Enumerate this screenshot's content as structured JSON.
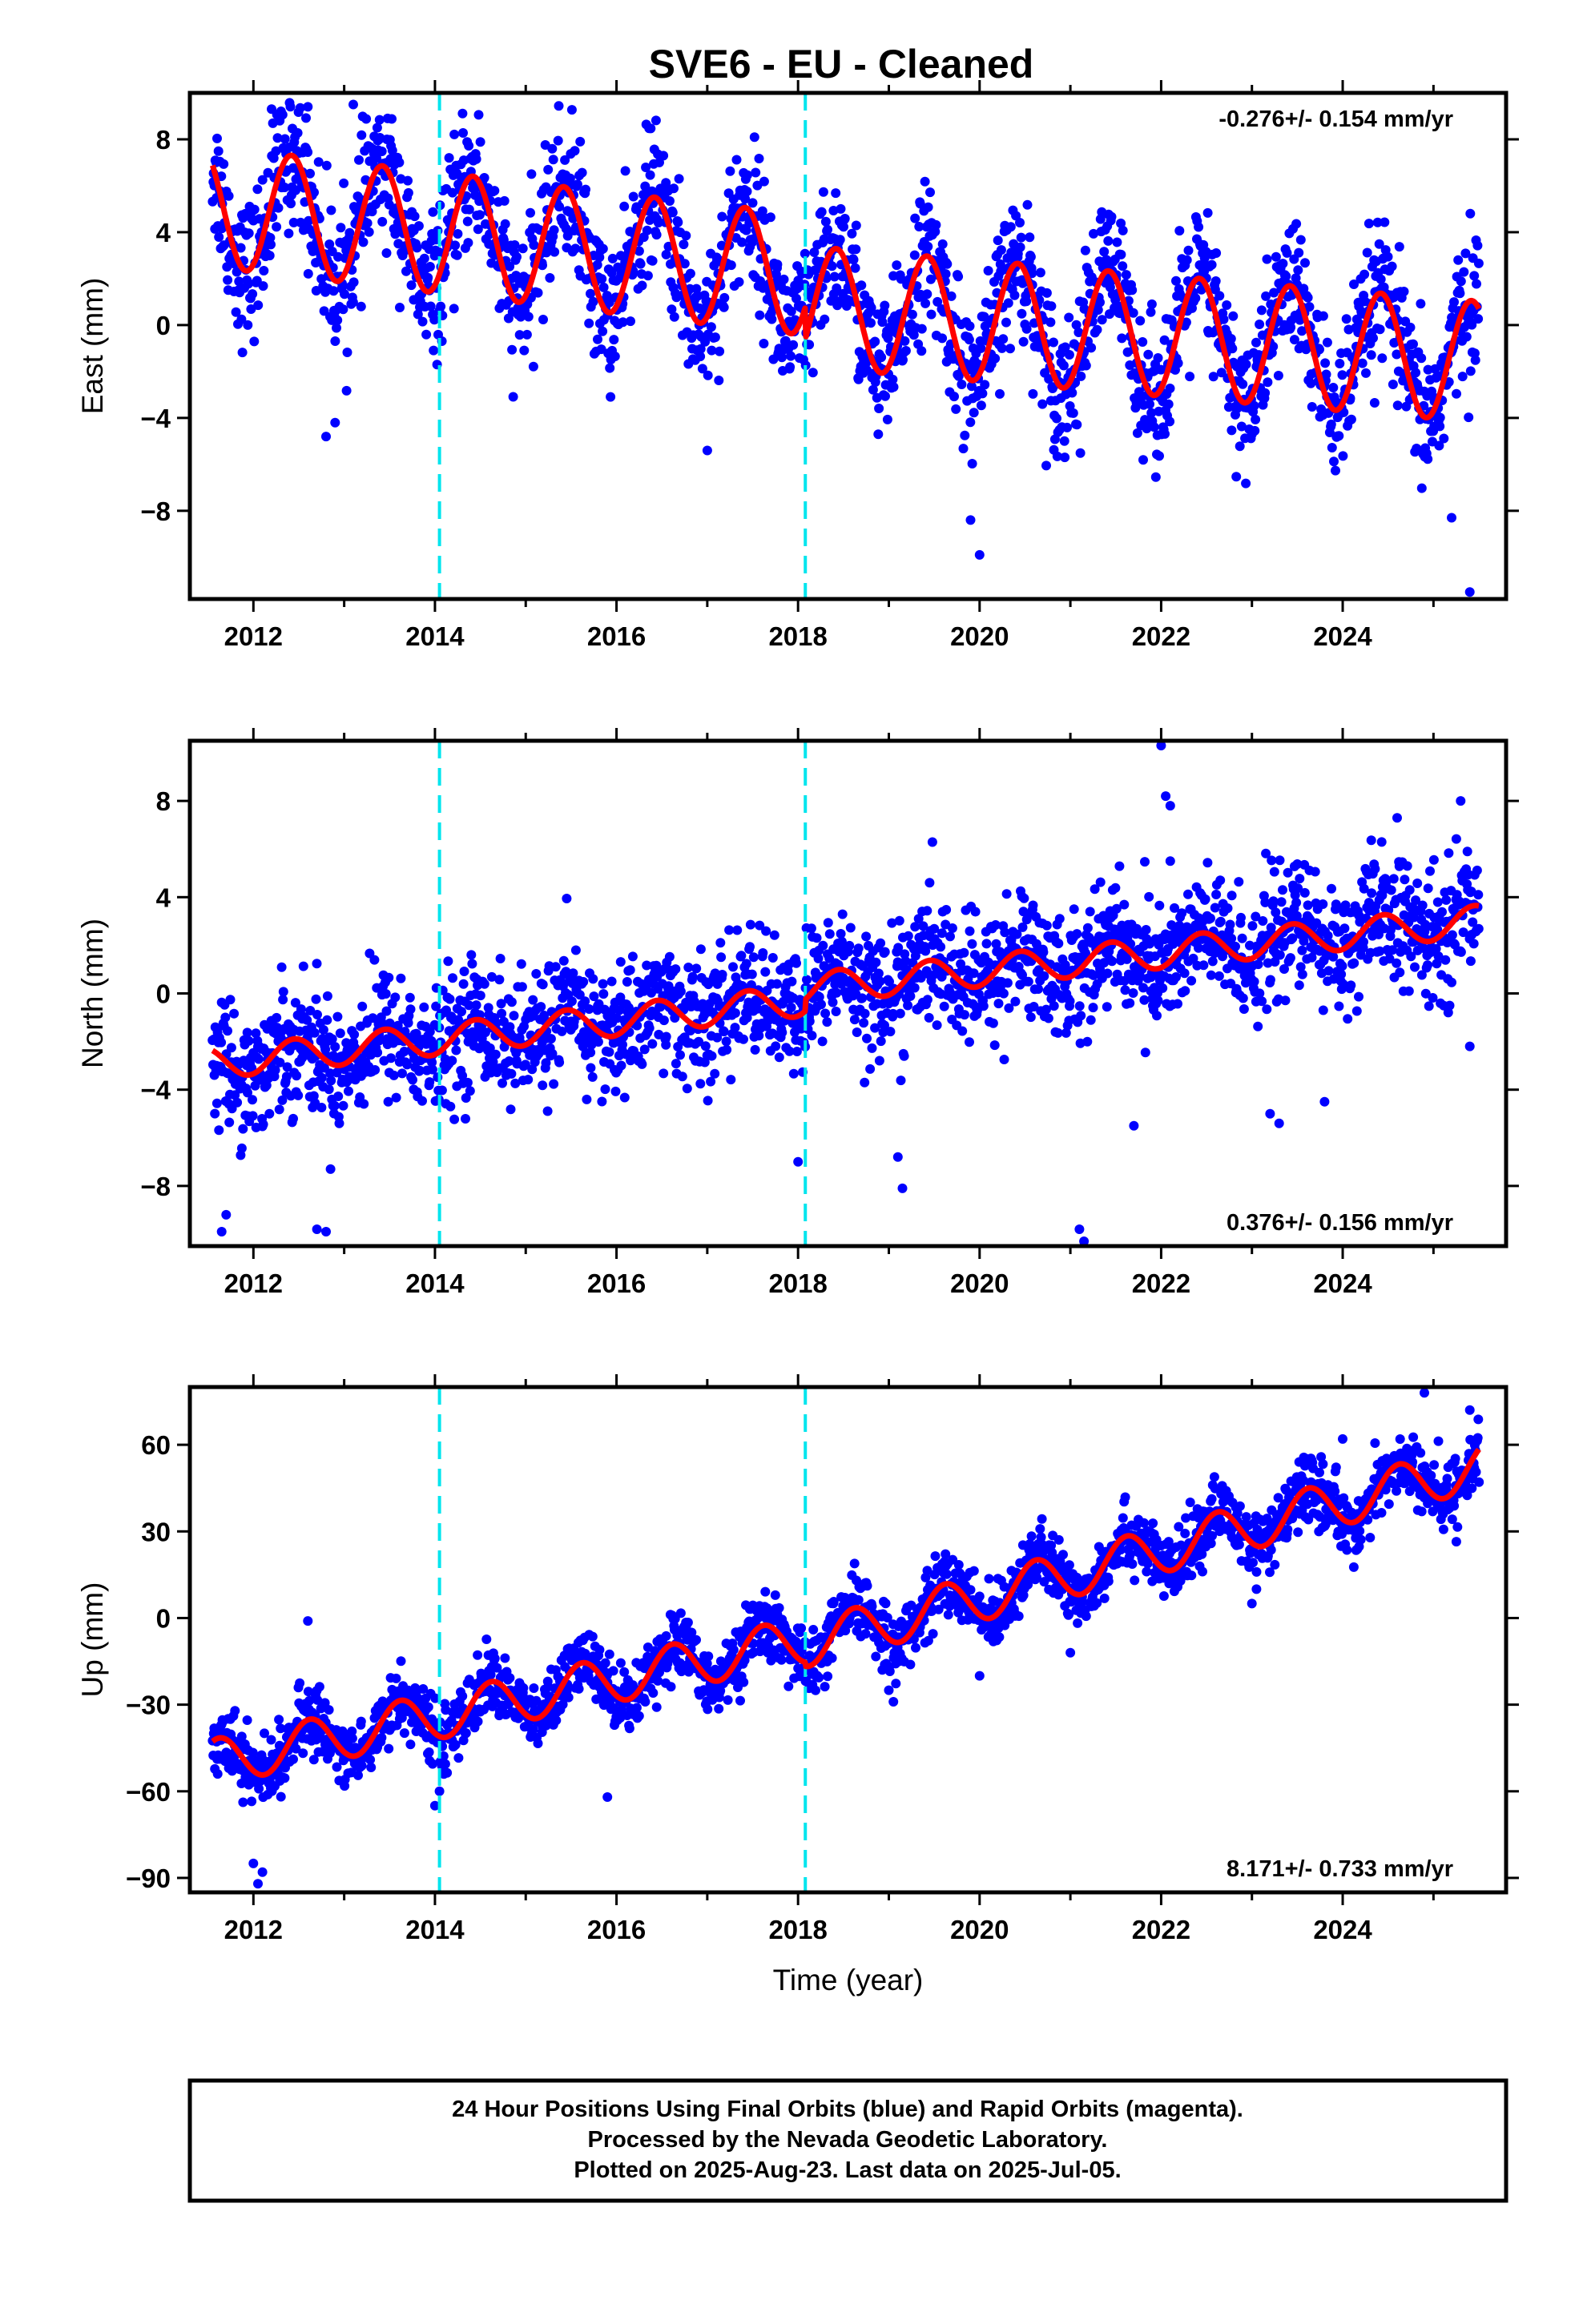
{
  "title": "SVE6  - EU - Cleaned",
  "footer": {
    "lines": [
      "24 Hour Positions Using Final Orbits (blue) and Rapid Orbits (magenta).",
      "Processed by the Nevada Geodetic Laboratory.",
      "Plotted on 2025-Aug-23. Last data on 2025-Jul-05."
    ]
  },
  "colors": {
    "points": "#0000ff",
    "model": "#ff0000",
    "breaks": "#00e5ee",
    "frame": "#000000"
  },
  "chart_data": [
    {
      "type": "scatter",
      "ylabel": "East (mm)",
      "xlabel": "",
      "xlim": [
        2011.3,
        2025.8
      ],
      "ylim": [
        -11.8,
        10.0
      ],
      "xticks": [
        2012,
        2014,
        2016,
        2018,
        2020,
        2022,
        2024
      ],
      "yticks": [
        8,
        4,
        0,
        -4,
        -8
      ],
      "rate_text": "-0.276+/- 0.154 mm/yr",
      "rate_position": "top-right",
      "model": {
        "start_year": 2011.55,
        "end_year": 2025.5,
        "segments": [
          {
            "x0": 2011.55,
            "x1": 2018.08,
            "offset": 5.1,
            "trend": -0.45,
            "amplitude": 2.6,
            "peak_phase": 0.42
          },
          {
            "x0": 2018.08,
            "x1": 2025.5,
            "offset": 0.8,
            "trend": -0.32,
            "amplitude": 2.6,
            "peak_phase": 0.42
          }
        ],
        "scatter_sigma": 1.5
      },
      "outliers": [
        [
          2012.2,
          9.3
        ],
        [
          2013.1,
          9.5
        ],
        [
          2012.6,
          9.4
        ],
        [
          2012.8,
          -4.8
        ],
        [
          2015.6,
          7.9
        ],
        [
          2020.0,
          -9.9
        ],
        [
          2019.9,
          -8.4
        ],
        [
          2025.2,
          -8.3
        ],
        [
          2025.4,
          -11.5
        ],
        [
          2012.9,
          -4.2
        ],
        [
          2017.0,
          -5.4
        ]
      ],
      "breaks": [
        2014.05,
        2018.08
      ]
    },
    {
      "type": "scatter",
      "ylabel": "North (mm)",
      "xlabel": "",
      "xlim": [
        2011.3,
        2025.8
      ],
      "ylim": [
        -10.5,
        10.5
      ],
      "xticks": [
        2012,
        2014,
        2016,
        2018,
        2020,
        2022,
        2024
      ],
      "yticks": [
        8,
        4,
        0,
        -4,
        -8
      ],
      "rate_text": "0.376+/- 0.156 mm/yr",
      "rate_position": "bottom-right",
      "model": {
        "start_year": 2011.55,
        "end_year": 2025.5,
        "segments": [
          {
            "x0": 2011.55,
            "x1": 2018.08,
            "offset": -2.9,
            "trend": 0.4,
            "amplitude": 0.65,
            "peak_phase": 0.45
          },
          {
            "x0": 2018.08,
            "x1": 2025.5,
            "offset": 0.2,
            "trend": 0.38,
            "amplitude": 0.65,
            "peak_phase": 0.45
          }
        ],
        "scatter_sigma": 1.3
      },
      "outliers": [
        [
          2011.65,
          -9.9
        ],
        [
          2011.7,
          -9.2
        ],
        [
          2012.7,
          -9.8
        ],
        [
          2012.8,
          -9.9
        ],
        [
          2018.0,
          -7.0
        ],
        [
          2019.1,
          -6.8
        ],
        [
          2019.15,
          -8.1
        ],
        [
          2021.1,
          -9.8
        ],
        [
          2021.15,
          -10.3
        ],
        [
          2022.0,
          10.3
        ],
        [
          2022.05,
          8.2
        ],
        [
          2022.1,
          7.8
        ],
        [
          2023.2,
          -5.0
        ],
        [
          2023.3,
          -5.4
        ],
        [
          2023.8,
          -4.5
        ],
        [
          2025.3,
          8.0
        ],
        [
          2025.4,
          -2.2
        ],
        [
          2021.7,
          -5.5
        ],
        [
          2022.1,
          5.5
        ],
        [
          2024.6,
          7.3
        ]
      ],
      "breaks": [
        2014.05,
        2018.08
      ]
    },
    {
      "type": "scatter",
      "ylabel": "Up (mm)",
      "xlabel": "Time (year)",
      "xlim": [
        2011.3,
        2025.8
      ],
      "ylim": [
        -95,
        80
      ],
      "xticks": [
        2012,
        2014,
        2016,
        2018,
        2020,
        2022,
        2024
      ],
      "yticks": [
        60,
        30,
        0,
        -30,
        -60,
        -90
      ],
      "rate_text": "8.171+/- 0.733 mm/yr",
      "rate_position": "bottom-right",
      "model": {
        "start_year": 2011.55,
        "end_year": 2025.5,
        "segments": [
          {
            "x0": 2011.55,
            "x1": 2018.08,
            "offset": -50.0,
            "trend": 6.5,
            "amplitude": 8.0,
            "peak_phase": 0.62
          },
          {
            "x0": 2018.08,
            "x1": 2025.5,
            "offset": -9.0,
            "trend": 8.3,
            "amplitude": 8.0,
            "peak_phase": 0.62
          }
        ],
        "scatter_sigma": 5.5
      },
      "outliers": [
        [
          2012.05,
          -92
        ],
        [
          2012.1,
          -88
        ],
        [
          2012.6,
          -1
        ],
        [
          2014.0,
          -65
        ],
        [
          2015.9,
          -62
        ],
        [
          2019.05,
          -29
        ],
        [
          2019.0,
          -25
        ],
        [
          2020.0,
          -20
        ],
        [
          2021.0,
          -12
        ],
        [
          2023.0,
          5
        ],
        [
          2023.05,
          10
        ],
        [
          2024.0,
          62
        ],
        [
          2024.9,
          78
        ],
        [
          2025.4,
          72
        ],
        [
          2014.05,
          -60
        ],
        [
          2012.0,
          -85
        ]
      ],
      "breaks": [
        2014.05,
        2018.08
      ]
    }
  ]
}
